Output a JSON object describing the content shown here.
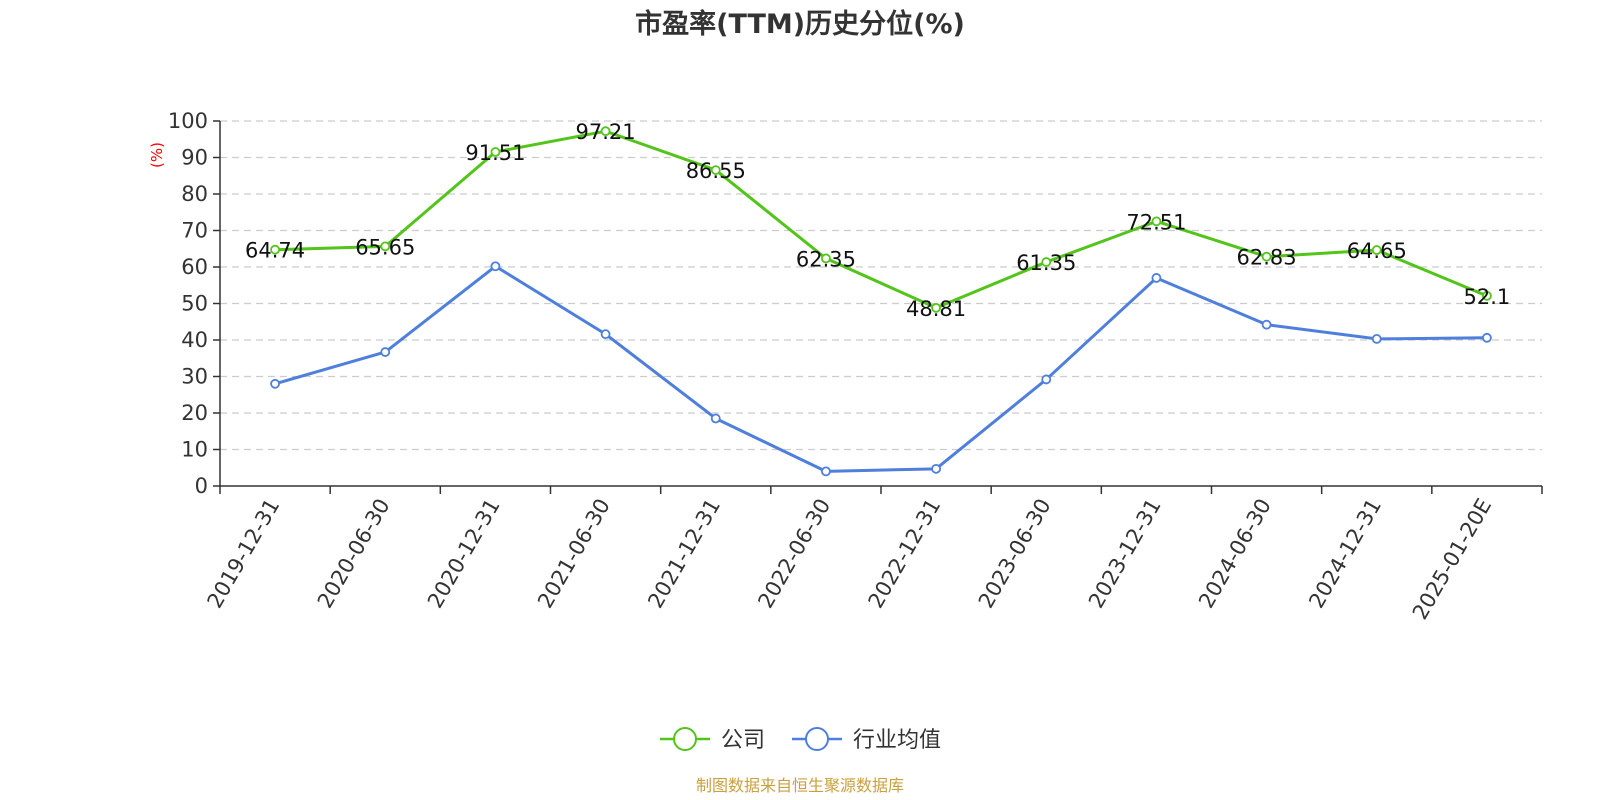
{
  "chart_data": {
    "type": "line",
    "title": "市盈率(TTM)历史分位(%)",
    "ylabel": "(%)",
    "categories": [
      "2019-12-31",
      "2020-06-30",
      "2020-12-31",
      "2021-06-30",
      "2021-12-31",
      "2022-06-30",
      "2022-12-31",
      "2023-06-30",
      "2023-12-31",
      "2024-06-30",
      "2024-12-31",
      "2025-01-20E"
    ],
    "ylim": [
      0,
      100
    ],
    "yticks": [
      "0",
      "10",
      "20",
      "30",
      "40",
      "50",
      "60",
      "70",
      "80",
      "90",
      "100"
    ],
    "grid": true,
    "legend_position": "bottom-center",
    "series": [
      {
        "name": "公司",
        "color": "#52c41a",
        "values": [
          64.74,
          65.65,
          91.51,
          97.21,
          86.55,
          62.35,
          48.81,
          61.35,
          72.51,
          62.83,
          64.65,
          52.1
        ],
        "labels": [
          "64.74",
          "65.65",
          "91.51",
          "97.21",
          "86.55",
          "62.35",
          "48.81",
          "61.35",
          "72.51",
          "62.83",
          "64.65",
          "52.1"
        ]
      },
      {
        "name": "行业均值",
        "color": "#4e7fdc",
        "values": [
          28.0,
          36.7,
          60.2,
          41.6,
          18.5,
          4.0,
          4.7,
          29.2,
          57.0,
          44.2,
          40.3,
          40.6
        ]
      }
    ]
  },
  "source_text": "制图数据来自恒生聚源数据库",
  "colors": {
    "title": "#333333",
    "ylabel": "#ff0000",
    "source": "#c8a040",
    "grid": "#cccccc",
    "axis": "#333333"
  }
}
